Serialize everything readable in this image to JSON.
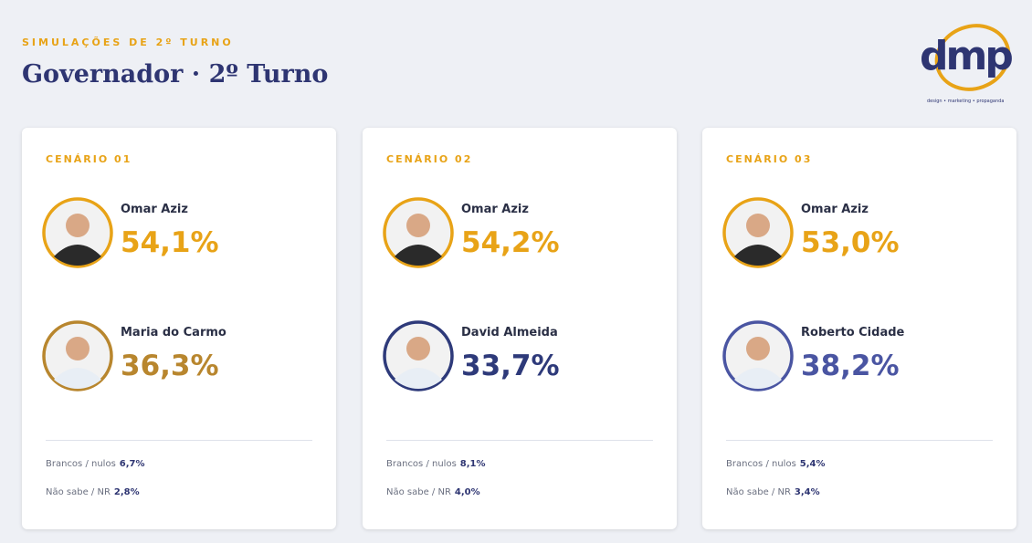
{
  "header": {
    "eyebrow": "SIMULAÇÕES DE 2º TURNO",
    "title": "Governador · 2º Turno"
  },
  "logo": {
    "text": "dmp",
    "tagline": "design • marketing • propaganda"
  },
  "cards": [
    {
      "label": "CENÁRIO 01",
      "candidates": [
        {
          "name": "Omar Aziz",
          "pct": "54,1%"
        },
        {
          "name": "Maria do Carmo",
          "pct": "36,3%"
        }
      ],
      "stats": [
        {
          "label": "Brancos / nulos",
          "value": "6,7%"
        },
        {
          "label": "Não sabe / NR",
          "value": "2,8%"
        }
      ]
    },
    {
      "label": "CENÁRIO 02",
      "candidates": [
        {
          "name": "Omar Aziz",
          "pct": "54,2%"
        },
        {
          "name": "David Almeida",
          "pct": "33,7%"
        }
      ],
      "stats": [
        {
          "label": "Brancos / nulos",
          "value": "8,1%"
        },
        {
          "label": "Não sabe / NR",
          "value": "4,0%"
        }
      ]
    },
    {
      "label": "CENÁRIO 03",
      "candidates": [
        {
          "name": "Omar Aziz",
          "pct": "53,0%"
        },
        {
          "name": "Roberto Cidade",
          "pct": "38,2%"
        }
      ],
      "stats": [
        {
          "label": "Brancos / nulos",
          "value": "5,4%"
        },
        {
          "label": "Não sabe / NR",
          "value": "3,4%"
        }
      ]
    }
  ]
}
